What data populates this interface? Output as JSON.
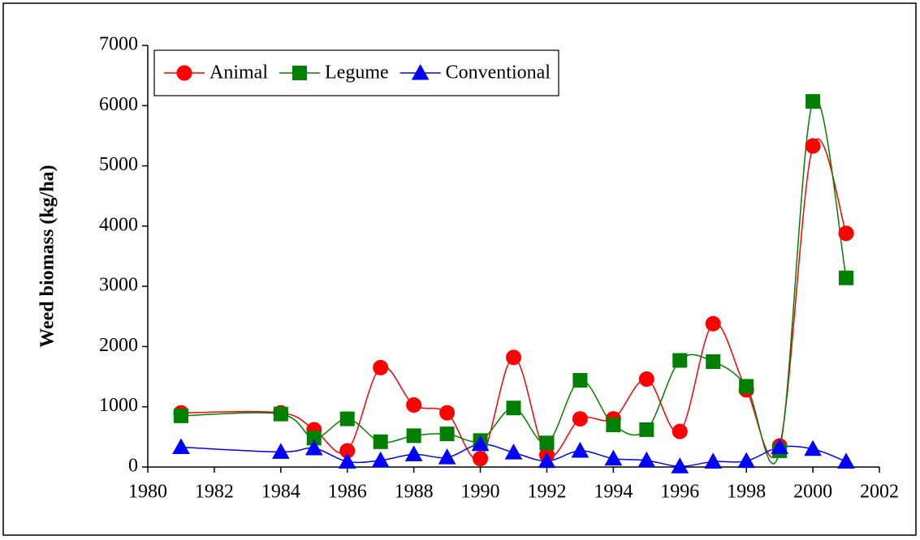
{
  "chart_data": {
    "type": "line",
    "y_label": "Weed biomass (kg/ha)",
    "x": [
      1981,
      1984,
      1985,
      1986,
      1987,
      1988,
      1989,
      1990,
      1991,
      1992,
      1993,
      1994,
      1995,
      1996,
      1997,
      1998,
      1999,
      2000,
      2001
    ],
    "series": [
      {
        "name": "Animal",
        "color": "#ff0000",
        "marker": "circle",
        "values": [
          900,
          900,
          620,
          270,
          1650,
          1030,
          900,
          140,
          1820,
          200,
          800,
          800,
          1460,
          590,
          2380,
          1280,
          350,
          5330,
          3880
        ]
      },
      {
        "name": "Legume",
        "color": "#008000",
        "marker": "square",
        "values": [
          850,
          880,
          480,
          800,
          420,
          520,
          550,
          440,
          980,
          400,
          1440,
          700,
          620,
          1770,
          1750,
          1340,
          270,
          6070,
          3140
        ]
      },
      {
        "name": "Conventional",
        "color": "#0000ff",
        "marker": "triangle",
        "values": [
          330,
          250,
          310,
          90,
          110,
          210,
          160,
          380,
          240,
          100,
          270,
          140,
          110,
          10,
          90,
          100,
          330,
          300,
          90
        ]
      }
    ],
    "xlim": [
      1980,
      2002
    ],
    "xticks": [
      1980,
      1982,
      1984,
      1986,
      1988,
      1990,
      1992,
      1994,
      1996,
      1998,
      2000,
      2002
    ],
    "ylim": [
      0,
      7000
    ],
    "yticks": [
      0,
      1000,
      2000,
      3000,
      4000,
      5000,
      6000,
      7000
    ],
    "grid": false,
    "smooth": true,
    "legend": "top-left"
  }
}
